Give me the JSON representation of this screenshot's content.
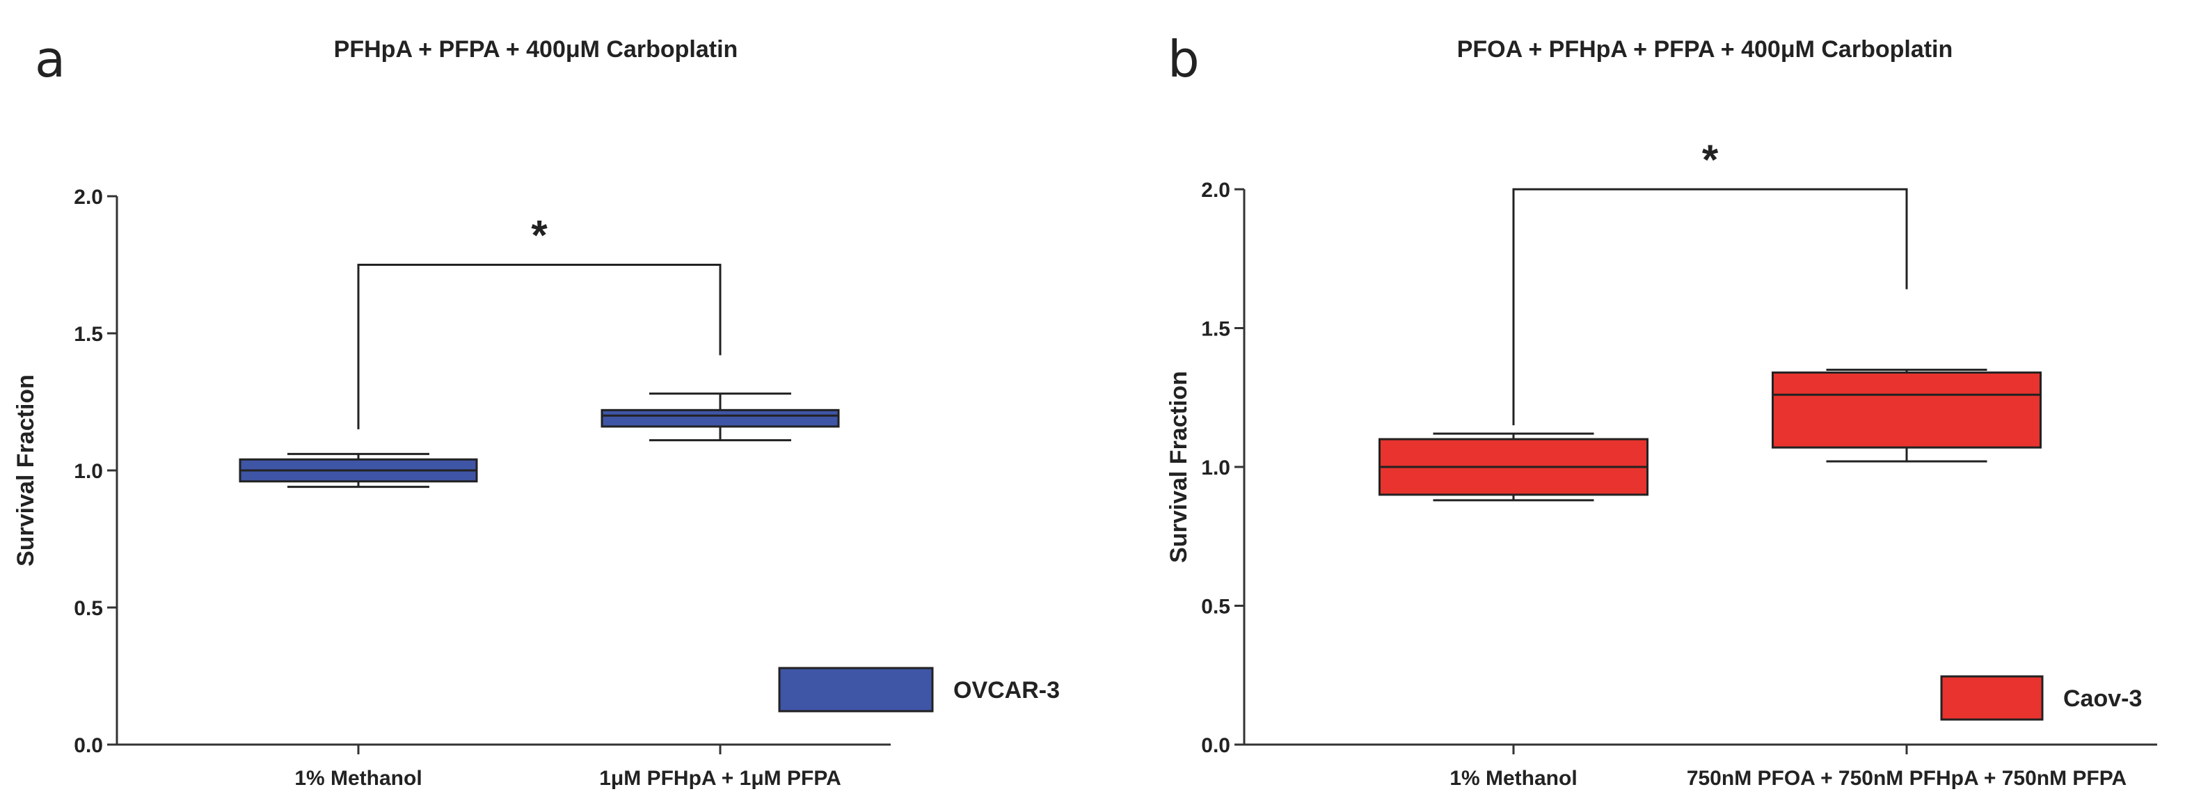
{
  "chart_data": [
    {
      "type": "boxplot",
      "panel_label": "a",
      "title": "PFHpA + PFPA + 400μM Carboplatin",
      "xlabel": "",
      "ylabel": "Survival Fraction",
      "ylim": [
        0,
        2.0
      ],
      "yticks": [
        "0.0",
        "0.5",
        "1.0",
        "1.5",
        "2.0"
      ],
      "ytick_values": [
        0,
        0.5,
        1.0,
        1.5,
        2.0
      ],
      "categories": [
        "1% Methanol",
        "1μM PFHpA + 1μM PFPA"
      ],
      "series": [
        {
          "name": "OVCAR-3",
          "color": "#3f55a6",
          "boxes": [
            {
              "min": 0.94,
              "q1": 0.96,
              "median": 1.0,
              "q3": 1.04,
              "max": 1.06
            },
            {
              "min": 1.11,
              "q1": 1.16,
              "median": 1.2,
              "q3": 1.22,
              "max": 1.28
            }
          ]
        }
      ],
      "significance": {
        "label": "*",
        "bracket_y": 1.75,
        "left_end": 1.15,
        "right_end": 1.42
      },
      "legend": {
        "label": "OVCAR-3",
        "color": "#3f55a6",
        "position": "bottom-right"
      }
    },
    {
      "type": "boxplot",
      "panel_label": "b",
      "title": "PFOA + PFHpA + PFPA + 400μM Carboplatin",
      "xlabel": "",
      "ylabel": "Survival Fraction",
      "ylim": [
        0,
        2.0
      ],
      "yticks": [
        "0.0",
        "0.5",
        "1.0",
        "1.5",
        "2.0"
      ],
      "ytick_values": [
        0,
        0.5,
        1.0,
        1.5,
        2.0
      ],
      "categories": [
        "1% Methanol",
        "750nM PFOA + 750nM PFHpA + 750nM PFPA"
      ],
      "series": [
        {
          "name": "Caov-3",
          "color": "#e8332e",
          "boxes": [
            {
              "min": 0.88,
              "q1": 0.9,
              "median": 1.0,
              "q3": 1.1,
              "max": 1.12
            },
            {
              "min": 1.02,
              "q1": 1.07,
              "median": 1.26,
              "q3": 1.34,
              "max": 1.35
            }
          ]
        }
      ],
      "significance": {
        "label": "*",
        "bracket_y": 2.0,
        "left_end": 1.15,
        "right_end": 1.64
      },
      "legend": {
        "label": "Caov-3",
        "color": "#e8332e",
        "position": "bottom-right"
      }
    }
  ]
}
